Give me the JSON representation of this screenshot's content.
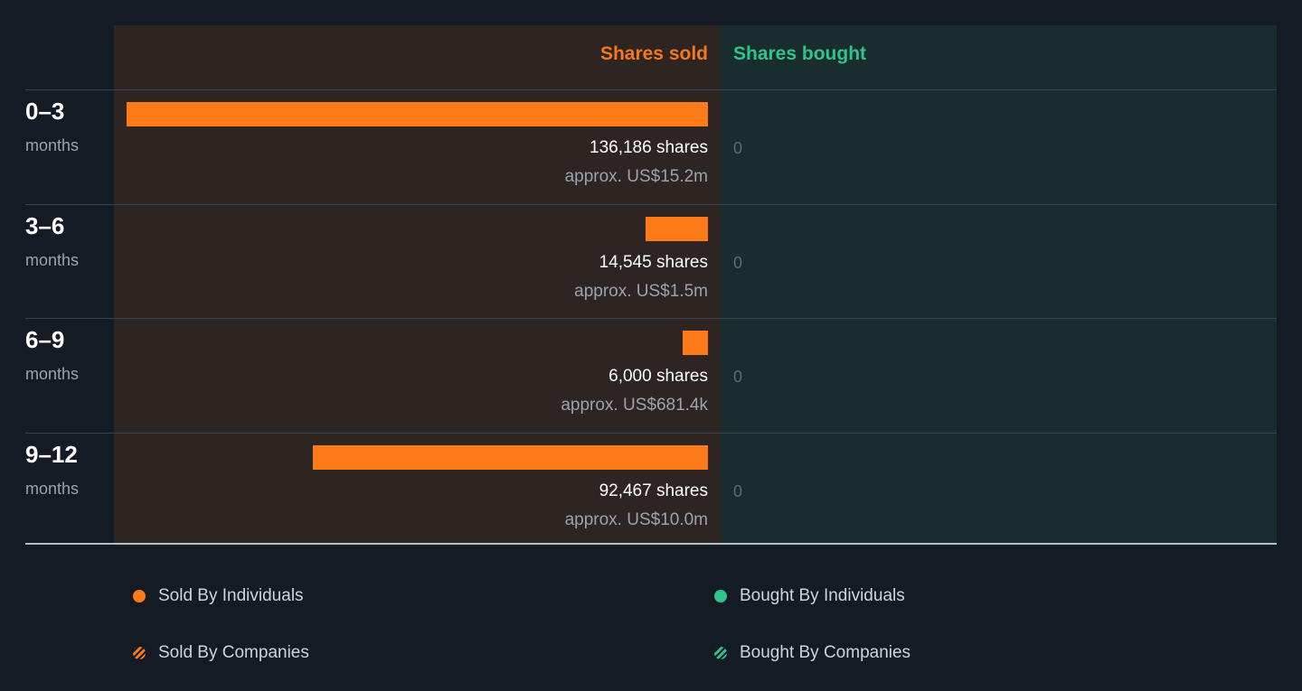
{
  "chart_data": {
    "type": "bar",
    "orientation": "horizontal",
    "columns": {
      "sold_header": "Shares sold",
      "bought_header": "Shares bought"
    },
    "categories": [
      {
        "period": "0–3",
        "unit": "months"
      },
      {
        "period": "3–6",
        "unit": "months"
      },
      {
        "period": "6–9",
        "unit": "months"
      },
      {
        "period": "9–12",
        "unit": "months"
      }
    ],
    "series": [
      {
        "name": "Shares sold",
        "values": [
          136186,
          14545,
          6000,
          92467
        ],
        "labels": [
          "136,186 shares",
          "14,545 shares",
          "6,000 shares",
          "92,467 shares"
        ],
        "approx": [
          "approx. US$15.2m",
          "approx. US$1.5m",
          "approx. US$681.4k",
          "approx. US$10.0m"
        ],
        "color": "#ff7b17"
      },
      {
        "name": "Shares bought",
        "values": [
          0,
          0,
          0,
          0
        ],
        "labels": [
          "0",
          "0",
          "0",
          "0"
        ],
        "color": "#2fc48a"
      }
    ],
    "legend": [
      {
        "label": "Sold By Individuals",
        "color": "#ff7b17",
        "style": "solid"
      },
      {
        "label": "Bought By Individuals",
        "color": "#2fc48a",
        "style": "solid"
      },
      {
        "label": "Sold By Companies",
        "color": "#ff7b17",
        "style": "hatched"
      },
      {
        "label": "Bought By Companies",
        "color": "#2fc48a",
        "style": "hatched"
      }
    ],
    "legend_position": "bottom"
  }
}
